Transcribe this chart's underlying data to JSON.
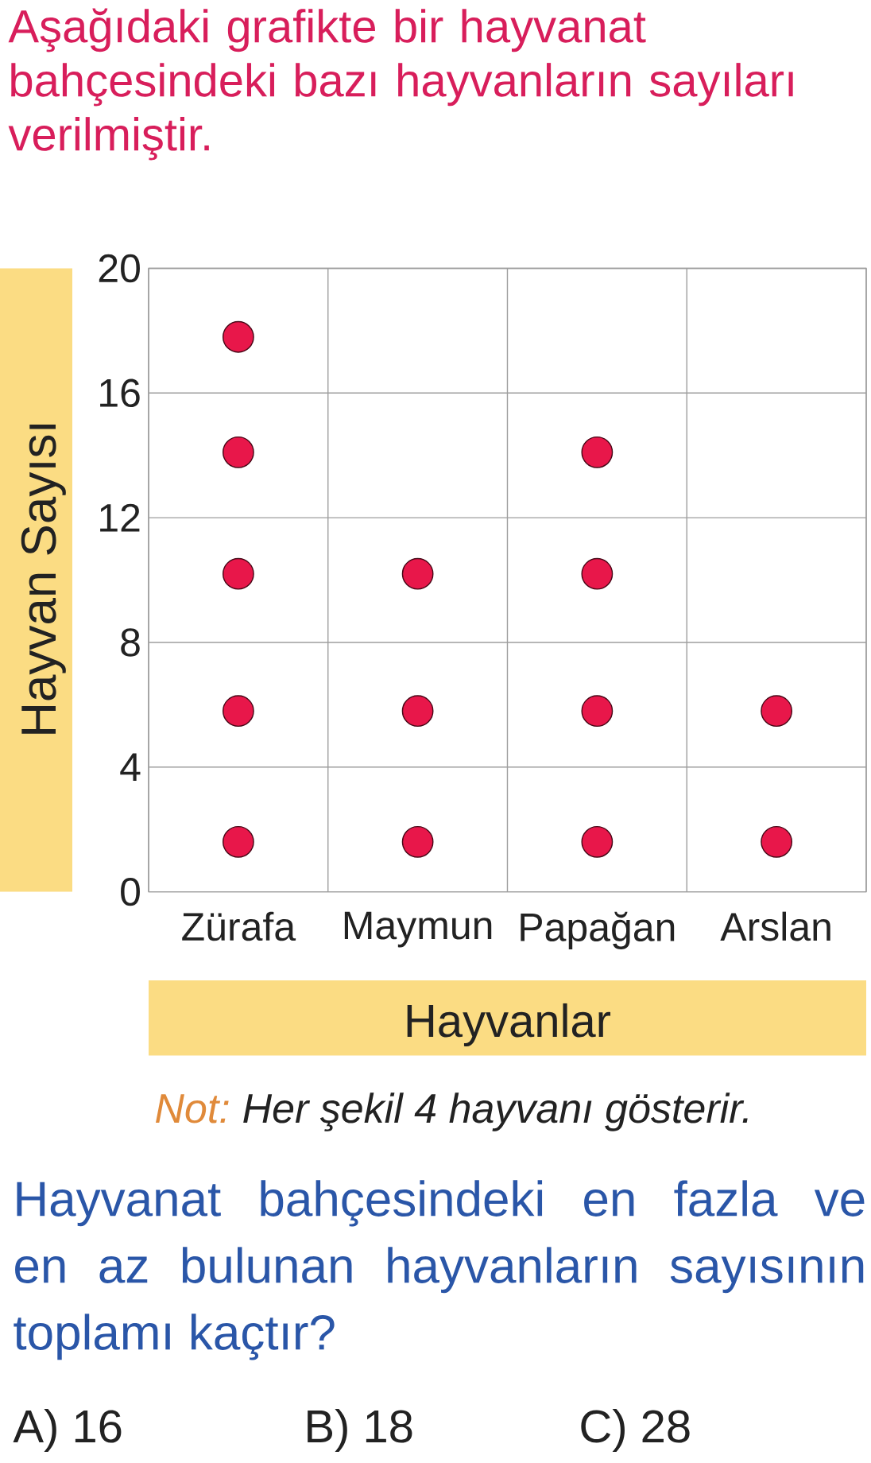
{
  "chart_data": {
    "type": "scatter",
    "title": "Aşağıdaki grafikte bir hayvanat bahçesindeki bazı hayvanların sayıları verilmiştir.",
    "xlabel": "Hayvanlar",
    "ylabel": "Hayvan Sayısı",
    "categories": [
      "Zürafa",
      "Maymun",
      "Papağan",
      "Arslan"
    ],
    "series": [
      {
        "color": "#e8174a",
        "x": [
          "Zürafa",
          "Zürafa",
          "Zürafa",
          "Zürafa",
          "Zürafa",
          "Maymun",
          "Maymun",
          "Maymun",
          "Papağan",
          "Papağan",
          "Papağan",
          "Papağan",
          "Arslan",
          "Arslan"
        ],
        "values": [
          1.6,
          5.8,
          10.2,
          14.1,
          17.8,
          1.6,
          5.8,
          10.2,
          1.6,
          5.8,
          10.2,
          14.1,
          1.6,
          5.8
        ]
      }
    ],
    "ylim": [
      0,
      20
    ],
    "yticks": [
      0,
      4,
      8,
      12,
      16,
      20
    ],
    "grid": true,
    "marker": "circle",
    "annotations": [
      "Not:",
      "Her şekil 4 hayvanı gösterir.",
      "Hayvanat bahçesindeki en fazla ve en az bulunan hayvanların sayısının toplamı kaçtır?",
      "A) 16",
      "B) 18",
      "C) 28"
    ]
  }
}
